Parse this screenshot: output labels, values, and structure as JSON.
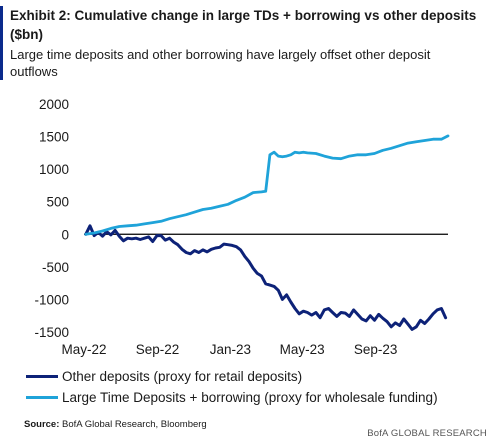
{
  "header": {
    "title": "Exhibit 2: Cumulative change in large TDs + borrowing vs other deposits ($bn)",
    "subtitle": "Large time deposits and other borrowing have largely offset other deposit outflows"
  },
  "colors": {
    "accent_bar": "#0a2a8c",
    "other_deposits": "#0d2278",
    "large_td": "#1fa3d9"
  },
  "chart_data": {
    "type": "line",
    "ylim": [
      -1500,
      2000
    ],
    "yticks": [
      "2000",
      "1500",
      "1000",
      "500",
      "0",
      "-500",
      "-1000",
      "-1500"
    ],
    "ytick_values": [
      2000,
      1500,
      1000,
      500,
      0,
      -500,
      -1000,
      -1500
    ],
    "xlim": [
      "2022-05-01",
      "2023-12-31"
    ],
    "xticks": [
      "May-22",
      "Sep-22",
      "Jan-23",
      "May-23",
      "Sep-23"
    ],
    "xtick_dates": [
      "2022-05-01",
      "2022-09-01",
      "2023-01-01",
      "2023-05-01",
      "2023-09-01"
    ],
    "zero_line": true,
    "series": [
      {
        "name": "Other deposits (proxy for retail deposits)",
        "color": "#0d2278",
        "x": [
          "2022-05-04",
          "2022-05-11",
          "2022-05-18",
          "2022-05-25",
          "2022-06-01",
          "2022-06-08",
          "2022-06-15",
          "2022-06-22",
          "2022-06-29",
          "2022-07-06",
          "2022-07-13",
          "2022-07-20",
          "2022-07-27",
          "2022-08-03",
          "2022-08-10",
          "2022-08-17",
          "2022-08-24",
          "2022-08-31",
          "2022-09-07",
          "2022-09-14",
          "2022-09-21",
          "2022-09-28",
          "2022-10-05",
          "2022-10-12",
          "2022-10-19",
          "2022-10-26",
          "2022-11-02",
          "2022-11-09",
          "2022-11-16",
          "2022-11-23",
          "2022-11-30",
          "2022-12-07",
          "2022-12-14",
          "2022-12-21",
          "2022-12-28",
          "2023-01-04",
          "2023-01-11",
          "2023-01-18",
          "2023-01-25",
          "2023-02-01",
          "2023-02-08",
          "2023-02-15",
          "2023-02-22",
          "2023-03-01",
          "2023-03-08",
          "2023-03-15",
          "2023-03-22",
          "2023-03-29",
          "2023-04-05",
          "2023-04-12",
          "2023-04-19",
          "2023-04-26",
          "2023-05-03",
          "2023-05-10",
          "2023-05-17",
          "2023-05-24",
          "2023-05-31",
          "2023-06-07",
          "2023-06-14",
          "2023-06-21",
          "2023-06-28",
          "2023-07-05",
          "2023-07-12",
          "2023-07-19",
          "2023-07-26",
          "2023-08-02",
          "2023-08-09",
          "2023-08-16",
          "2023-08-23",
          "2023-08-30",
          "2023-09-06",
          "2023-09-13",
          "2023-09-20",
          "2023-09-27",
          "2023-10-04",
          "2023-10-11",
          "2023-10-18",
          "2023-10-25",
          "2023-11-01",
          "2023-11-08",
          "2023-11-15",
          "2023-11-22",
          "2023-11-29",
          "2023-12-06",
          "2023-12-13",
          "2023-12-20",
          "2023-12-27"
        ],
        "values": [
          0,
          130,
          -20,
          30,
          -30,
          40,
          -10,
          60,
          -30,
          -100,
          -60,
          -70,
          -60,
          -80,
          -60,
          -40,
          -110,
          -20,
          -20,
          -90,
          -60,
          -120,
          -160,
          -230,
          -280,
          -300,
          -250,
          -280,
          -240,
          -270,
          -230,
          -210,
          -200,
          -150,
          -160,
          -170,
          -190,
          -240,
          -340,
          -420,
          -520,
          -600,
          -640,
          -760,
          -780,
          -800,
          -860,
          -1000,
          -930,
          -1040,
          -1140,
          -1220,
          -1180,
          -1200,
          -1240,
          -1200,
          -1280,
          -1160,
          -1140,
          -1200,
          -1260,
          -1200,
          -1210,
          -1260,
          -1160,
          -1230,
          -1300,
          -1330,
          -1250,
          -1320,
          -1230,
          -1290,
          -1340,
          -1420,
          -1360,
          -1400,
          -1300,
          -1380,
          -1460,
          -1420,
          -1320,
          -1370,
          -1300,
          -1220,
          -1160,
          -1140,
          -1280
        ]
      },
      {
        "name": "Large Time Deposits + borrowing (proxy for wholesale funding)",
        "color": "#1fa3d9",
        "x": [
          "2022-05-04",
          "2022-05-18",
          "2022-06-01",
          "2022-06-15",
          "2022-06-29",
          "2022-07-13",
          "2022-07-27",
          "2022-08-10",
          "2022-08-24",
          "2022-09-07",
          "2022-09-21",
          "2022-10-05",
          "2022-10-19",
          "2022-11-02",
          "2022-11-16",
          "2022-11-30",
          "2022-12-14",
          "2022-12-28",
          "2023-01-11",
          "2023-01-25",
          "2023-02-08",
          "2023-02-22",
          "2023-03-01",
          "2023-03-08",
          "2023-03-15",
          "2023-03-22",
          "2023-03-29",
          "2023-04-05",
          "2023-04-12",
          "2023-04-19",
          "2023-04-26",
          "2023-05-03",
          "2023-05-10",
          "2023-05-24",
          "2023-06-07",
          "2023-06-21",
          "2023-07-05",
          "2023-07-19",
          "2023-08-02",
          "2023-08-16",
          "2023-08-30",
          "2023-09-13",
          "2023-09-27",
          "2023-10-11",
          "2023-10-25",
          "2023-11-08",
          "2023-11-22",
          "2023-12-06",
          "2023-12-20",
          "2023-12-31"
        ],
        "values": [
          0,
          20,
          50,
          90,
          120,
          130,
          140,
          160,
          180,
          200,
          240,
          270,
          300,
          340,
          380,
          400,
          430,
          460,
          520,
          570,
          640,
          650,
          660,
          1220,
          1260,
          1200,
          1190,
          1200,
          1220,
          1260,
          1250,
          1260,
          1250,
          1240,
          1200,
          1170,
          1160,
          1200,
          1220,
          1220,
          1240,
          1290,
          1320,
          1360,
          1400,
          1420,
          1440,
          1460,
          1460,
          1510
        ]
      }
    ]
  },
  "legend": {
    "items": [
      "Other deposits (proxy for retail deposits)",
      "Large Time Deposits + borrowing (proxy for wholesale funding)"
    ]
  },
  "source": {
    "label": "Source:",
    "text": " BofA Global Research, Bloomberg"
  },
  "footer": "BofA GLOBAL RESEARCH"
}
